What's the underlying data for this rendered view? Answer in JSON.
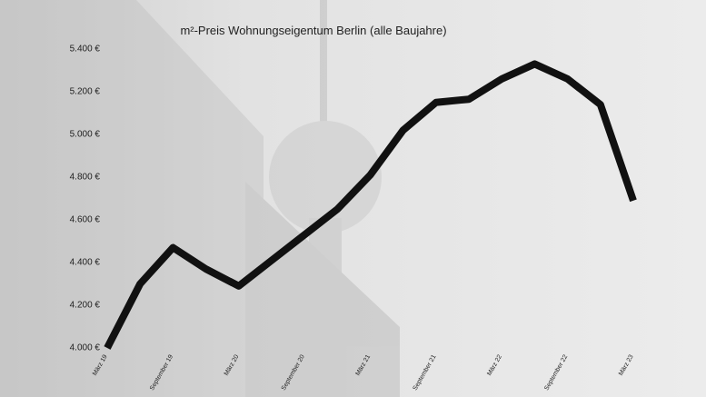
{
  "chart_data": {
    "type": "line",
    "title": "m²-Preis Wohnungseigentum Berlin (alle Baujahre)",
    "categories": [
      "März 19",
      null,
      "September 19",
      null,
      "März 20",
      null,
      "September 20",
      null,
      "März 21",
      null,
      "September 21",
      null,
      "März 22",
      null,
      "September 22",
      null,
      "März 23"
    ],
    "values": [
      4000,
      4300,
      4470,
      4370,
      4290,
      4410,
      4530,
      4650,
      4810,
      5020,
      5150,
      5165,
      5260,
      5330,
      5260,
      5140,
      4690
    ],
    "color": "#111111",
    "ylim": [
      4000,
      5400
    ],
    "yticks": [
      {
        "value": 4000,
        "label": "4.000 €"
      },
      {
        "value": 4200,
        "label": "4.200 €"
      },
      {
        "value": 4400,
        "label": "4.400 €"
      },
      {
        "value": 4600,
        "label": "4.600 €"
      },
      {
        "value": 4800,
        "label": "4.800 €"
      },
      {
        "value": 5000,
        "label": "5.000 €"
      },
      {
        "value": 5200,
        "label": "5.200 €"
      },
      {
        "value": 5400,
        "label": "5.400 €"
      }
    ],
    "grid": false
  }
}
